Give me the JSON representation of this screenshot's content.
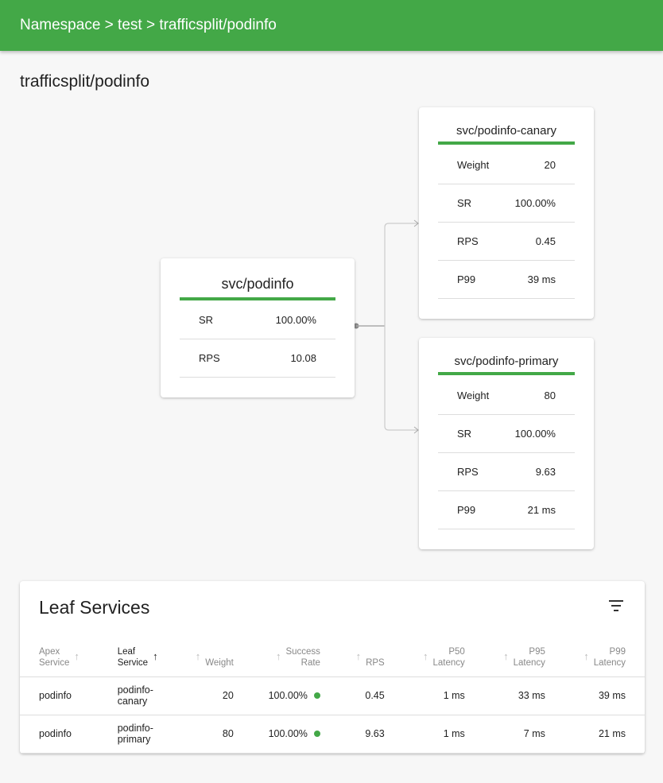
{
  "header": {
    "breadcrumb": "Namespace > test > trafficsplit/podinfo"
  },
  "page_title": "trafficsplit/podinfo",
  "colors": {
    "accent": "#43a847"
  },
  "apex": {
    "title": "svc/podinfo",
    "rows": [
      {
        "label": "SR",
        "value": "100.00%"
      },
      {
        "label": "RPS",
        "value": "10.08"
      }
    ]
  },
  "leaves": [
    {
      "title": "svc/podinfo-canary",
      "rows": [
        {
          "label": "Weight",
          "value": "20"
        },
        {
          "label": "SR",
          "value": "100.00%"
        },
        {
          "label": "RPS",
          "value": "0.45"
        },
        {
          "label": "P99",
          "value": "39 ms"
        }
      ]
    },
    {
      "title": "svc/podinfo-primary",
      "rows": [
        {
          "label": "Weight",
          "value": "80"
        },
        {
          "label": "SR",
          "value": "100.00%"
        },
        {
          "label": "RPS",
          "value": "9.63"
        },
        {
          "label": "P99",
          "value": "21 ms"
        }
      ]
    }
  ],
  "table": {
    "title": "Leaf Services",
    "filter_icon": "filter-icon",
    "columns": [
      {
        "line1": "Apex",
        "line2": "Service"
      },
      {
        "line1": "Leaf",
        "line2": "Service",
        "sorted": true
      },
      {
        "line1": "",
        "line2": "Weight"
      },
      {
        "line1": "Success",
        "line2": "Rate"
      },
      {
        "line1": "",
        "line2": "RPS"
      },
      {
        "line1": "P50",
        "line2": "Latency"
      },
      {
        "line1": "P95",
        "line2": "Latency"
      },
      {
        "line1": "P99",
        "line2": "Latency"
      }
    ],
    "rows": [
      {
        "apex": "podinfo",
        "leaf1": "podinfo-",
        "leaf2": "canary",
        "weight": "20",
        "sr": "100.00%",
        "sr_status": "good",
        "rps": "0.45",
        "p50": "1 ms",
        "p95": "33 ms",
        "p99": "39 ms"
      },
      {
        "apex": "podinfo",
        "leaf1": "podinfo-",
        "leaf2": "primary",
        "weight": "80",
        "sr": "100.00%",
        "sr_status": "good",
        "rps": "9.63",
        "p50": "1 ms",
        "p95": "7 ms",
        "p99": "21 ms"
      }
    ]
  }
}
